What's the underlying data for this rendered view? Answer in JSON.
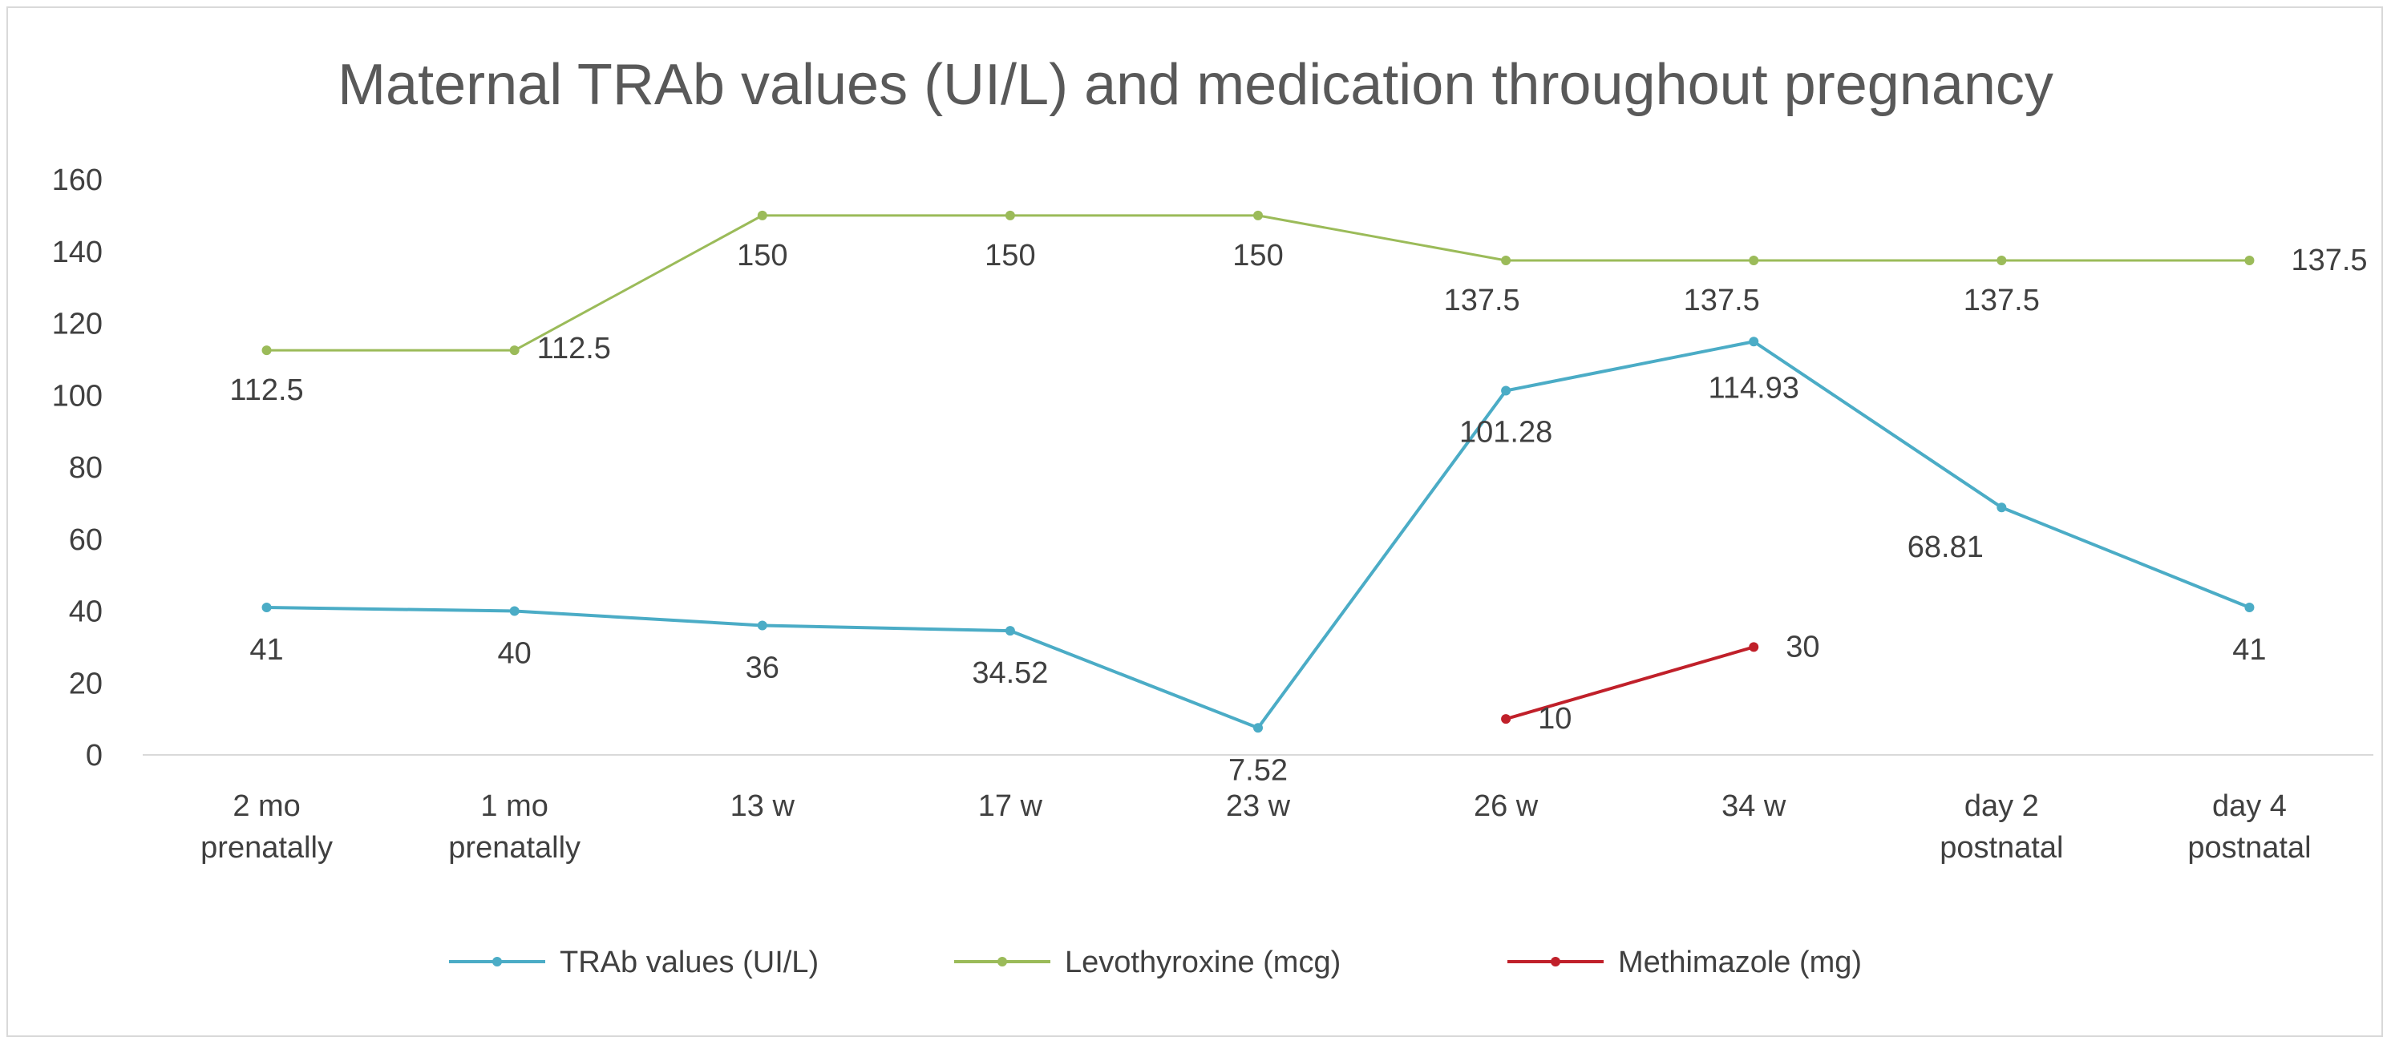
{
  "chart_data": {
    "type": "line",
    "title": "Maternal TRAb values (UI/L) and medication throughout pregnancy",
    "xlabel": "",
    "ylabel": "",
    "ylim": [
      0,
      160
    ],
    "yticks": [
      "0",
      "20",
      "40",
      "60",
      "80",
      "100",
      "120",
      "140",
      "160"
    ],
    "categories": [
      [
        "2 mo",
        "prenatally"
      ],
      [
        "1 mo",
        "prenatally"
      ],
      [
        "13 w"
      ],
      [
        "17 w"
      ],
      [
        "23 w"
      ],
      [
        "26 w"
      ],
      [
        "34 w"
      ],
      [
        "day 2",
        "postnatal"
      ],
      [
        "day 4",
        "postnatal"
      ]
    ],
    "grid": false,
    "legend_position": "bottom",
    "series": [
      {
        "name": "TRAb values (UI/L)",
        "color": "#4bacc6",
        "values": [
          41,
          40,
          36,
          34.52,
          7.52,
          101.28,
          114.93,
          68.81,
          41
        ],
        "labels": [
          "41",
          "40",
          "36",
          "34.52",
          "7.52",
          "101.28",
          "114.93",
          "68.81",
          "41"
        ]
      },
      {
        "name": "Levothyroxine (mcg)",
        "color": "#9bbb59",
        "values": [
          112.5,
          112.5,
          150,
          150,
          150,
          137.5,
          137.5,
          137.5,
          137.5
        ],
        "labels": [
          "112.5",
          "112.5",
          "150",
          "150",
          "150",
          "137.5",
          "137.5",
          "137.5",
          "137.5"
        ]
      },
      {
        "name": "Methimazole (mg)",
        "color": "#c0202a",
        "values": [
          null,
          null,
          null,
          null,
          null,
          10,
          30,
          null,
          null
        ],
        "labels": [
          "",
          "",
          "",
          "",
          "",
          "10",
          "30",
          "",
          ""
        ]
      }
    ]
  }
}
